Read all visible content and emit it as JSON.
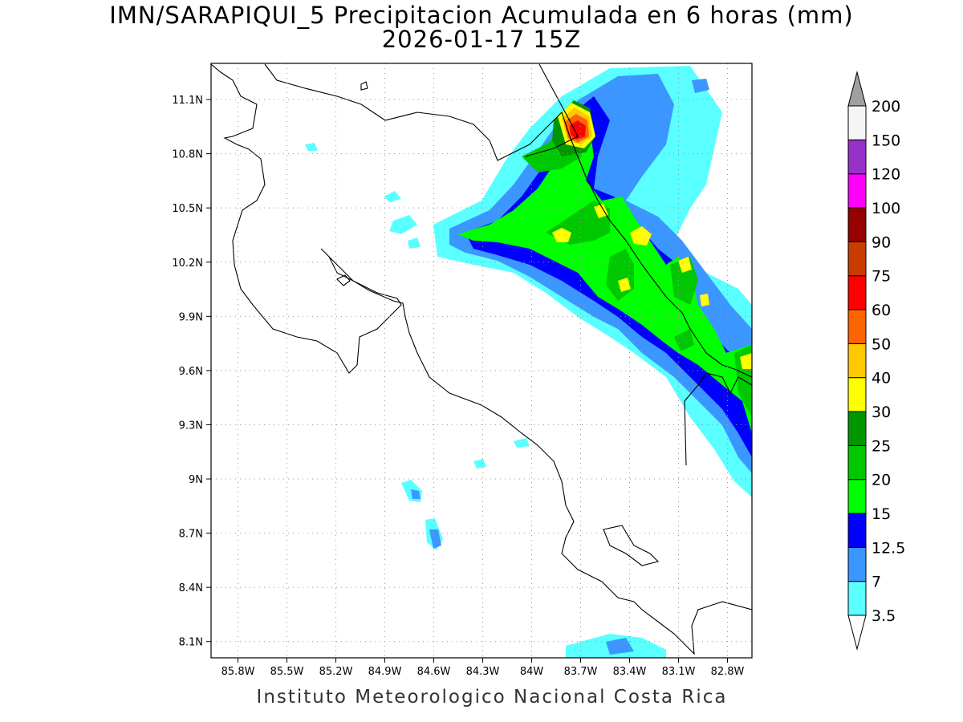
{
  "title": {
    "line1": "IMN/SARAPIQUI_5 Precipitacion Acumulada en 6 horas (mm)",
    "line2": "2026-01-17 15Z"
  },
  "footer": "Instituto Meteorologico Nacional Costa Rica",
  "map": {
    "lon_range": [
      -85.965,
      -82.65
    ],
    "lat_range": [
      8.01,
      11.3
    ],
    "lon_ticks": [
      "85.8W",
      "85.5W",
      "85.2W",
      "84.9W",
      "84.6W",
      "84.3W",
      "84W",
      "83.7W",
      "83.4W",
      "83.1W",
      "82.8W"
    ],
    "lon_tick_values": [
      -85.8,
      -85.5,
      -85.2,
      -84.9,
      -84.6,
      -84.3,
      -84.0,
      -83.7,
      -83.4,
      -83.1,
      -82.8
    ],
    "lat_ticks": [
      "11.1N",
      "10.8N",
      "10.5N",
      "10.2N",
      "9.9N",
      "9.6N",
      "9.3N",
      "9N",
      "8.7N",
      "8.4N",
      "8.1N"
    ],
    "lat_tick_values": [
      11.1,
      10.8,
      10.5,
      10.2,
      9.9,
      9.6,
      9.3,
      9.0,
      8.7,
      8.4,
      8.1
    ],
    "grid": "dotted"
  },
  "colorbar": {
    "unit": "mm",
    "levels": [
      "3.5",
      "7",
      "12.5",
      "15",
      "20",
      "25",
      "30",
      "40",
      "50",
      "60",
      "75",
      "90",
      "100",
      "120",
      "150",
      "200"
    ],
    "colors": [
      "#ffffff",
      "#5affff",
      "#3c96ff",
      "#0000ff",
      "#00ff00",
      "#00c800",
      "#009600",
      "#ffff00",
      "#ffc800",
      "#ff6400",
      "#ff0000",
      "#c83c00",
      "#960000",
      "#ff00ff",
      "#9632c8",
      "#f5f5f5",
      "#a0a0a0"
    ]
  }
}
